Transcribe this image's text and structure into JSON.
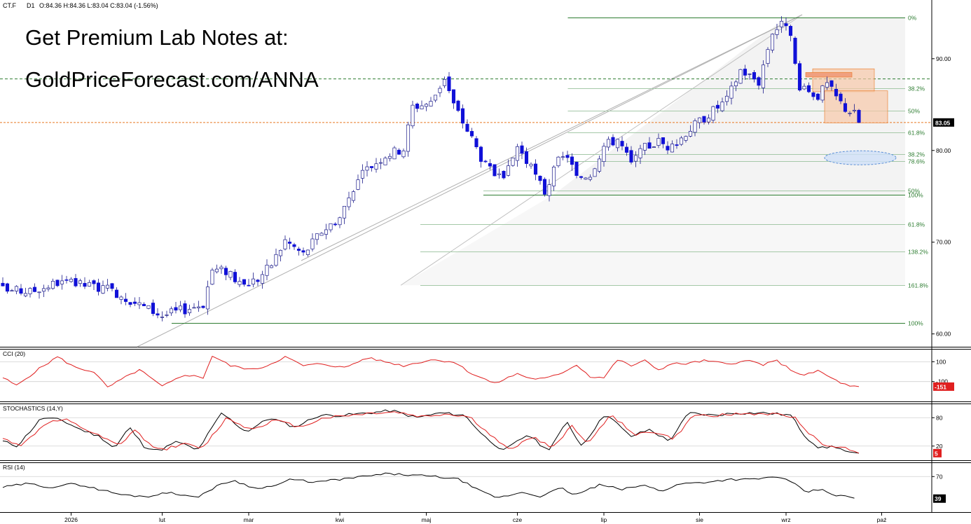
{
  "header": {
    "symbol": "CT.F",
    "timeframe": "D1",
    "ohlc": "O:84.36 H:84.36 L:83.04 C:83.04 (-1.56%)"
  },
  "promo": {
    "line1": "Get Premium Lab Notes at:",
    "line2": "GoldPriceForecast.com/ANNA"
  },
  "chart_data": [
    {
      "type": "candlestick",
      "panel": "price",
      "ylim": [
        60,
        95
      ],
      "y_ticks": [
        "90.00",
        "80.00",
        "70.00",
        "60.00"
      ],
      "y_tick_values": [
        90,
        80,
        70,
        60
      ],
      "last_price": 83.05,
      "last_price_label": "83.05",
      "colors": {
        "bull": "#1a1aa6",
        "bear": "#1010d8",
        "last": "#000000",
        "fib": "#2e7d32",
        "orange": "#e87722"
      },
      "x_ticks": [
        "2026",
        "lut",
        "mar",
        "kwi",
        "maj",
        "cze",
        "lip",
        "sie",
        "wrz",
        "paź"
      ],
      "x_tick_index": [
        15,
        35,
        54,
        74,
        93,
        113,
        132,
        153,
        172,
        193
      ],
      "anchors": [
        [
          0,
          64.8
        ],
        [
          6,
          64.6
        ],
        [
          12,
          65.6
        ],
        [
          20,
          65.2
        ],
        [
          25,
          64.5
        ],
        [
          30,
          63.2
        ],
        [
          35,
          62.0
        ],
        [
          40,
          62.7
        ],
        [
          44,
          63.3
        ],
        [
          46,
          67.0
        ],
        [
          50,
          66.8
        ],
        [
          52,
          65.2
        ],
        [
          56,
          66.0
        ],
        [
          59,
          67.6
        ],
        [
          62,
          70.2
        ],
        [
          66,
          68.7
        ],
        [
          70,
          71.2
        ],
        [
          74,
          72.7
        ],
        [
          77,
          76.0
        ],
        [
          80,
          78.0
        ],
        [
          84,
          79.5
        ],
        [
          88,
          80.2
        ],
        [
          90,
          84.8
        ],
        [
          94,
          85.2
        ],
        [
          97,
          88.0
        ],
        [
          99,
          85.0
        ],
        [
          103,
          81.3
        ],
        [
          106,
          78.3
        ],
        [
          110,
          76.5
        ],
        [
          113,
          80.5
        ],
        [
          116,
          78.0
        ],
        [
          119,
          75.5
        ],
        [
          122,
          78.8
        ],
        [
          124,
          79.5
        ],
        [
          126,
          77.0
        ],
        [
          129,
          77.5
        ],
        [
          132,
          80.5
        ],
        [
          135,
          81.3
        ],
        [
          138,
          78.5
        ],
        [
          141,
          80.3
        ],
        [
          144,
          81.0
        ],
        [
          147,
          80.2
        ],
        [
          150,
          82.0
        ],
        [
          155,
          84.0
        ],
        [
          159,
          85.5
        ],
        [
          162,
          88.8
        ],
        [
          166,
          87.5
        ],
        [
          169,
          93.0
        ],
        [
          172,
          94.0
        ],
        [
          173,
          92.0
        ],
        [
          175,
          86.5
        ],
        [
          177,
          86.4
        ],
        [
          179,
          86.0
        ],
        [
          181,
          87.2
        ],
        [
          183,
          85.8
        ],
        [
          185,
          84.6
        ],
        [
          187,
          84.0
        ],
        [
          188,
          83.05
        ]
      ],
      "fib_levels": [
        {
          "label": "0%",
          "value": 94.5
        },
        {
          "label": "38.2%",
          "value": 86.8
        },
        {
          "label": "50%",
          "value": 84.3
        },
        {
          "label": "61.8%",
          "value": 82.0
        },
        {
          "label": "38.2%",
          "value": 79.6
        },
        {
          "label": "78.6%",
          "value": 78.8
        },
        {
          "label": "50%",
          "value": 75.6
        },
        {
          "label": "100%",
          "value": 75.2
        },
        {
          "label": "61.8%",
          "value": 72.0
        },
        {
          "label": "138.2%",
          "value": 69.0
        },
        {
          "label": "161.8%",
          "value": 65.3
        },
        {
          "label": "100%",
          "value": 61.2
        }
      ],
      "dashed_level": 87.8
    },
    {
      "type": "line",
      "panel": "cci",
      "title": "CCI (20)",
      "ylim": [
        -300,
        230
      ],
      "y_ticks": [
        "100",
        "-100"
      ],
      "y_tick_values": [
        100,
        -100
      ],
      "last_label": "-151",
      "color": "#e02020",
      "anchors": [
        [
          0,
          -60
        ],
        [
          3,
          -140
        ],
        [
          8,
          30
        ],
        [
          12,
          150
        ],
        [
          16,
          40
        ],
        [
          20,
          0
        ],
        [
          23,
          -160
        ],
        [
          26,
          -80
        ],
        [
          30,
          20
        ],
        [
          35,
          -150
        ],
        [
          40,
          -30
        ],
        [
          44,
          -60
        ],
        [
          46,
          160
        ],
        [
          50,
          60
        ],
        [
          55,
          20
        ],
        [
          58,
          60
        ],
        [
          62,
          150
        ],
        [
          66,
          60
        ],
        [
          70,
          80
        ],
        [
          75,
          40
        ],
        [
          80,
          140
        ],
        [
          84,
          100
        ],
        [
          88,
          60
        ],
        [
          94,
          120
        ],
        [
          99,
          100
        ],
        [
          103,
          -20
        ],
        [
          108,
          -120
        ],
        [
          113,
          -20
        ],
        [
          116,
          -70
        ],
        [
          119,
          -70
        ],
        [
          122,
          -30
        ],
        [
          126,
          70
        ],
        [
          129,
          -50
        ],
        [
          132,
          -60
        ],
        [
          135,
          120
        ],
        [
          138,
          60
        ],
        [
          141,
          110
        ],
        [
          144,
          20
        ],
        [
          147,
          80
        ],
        [
          150,
          80
        ],
        [
          154,
          110
        ],
        [
          159,
          80
        ],
        [
          164,
          110
        ],
        [
          167,
          70
        ],
        [
          170,
          110
        ],
        [
          173,
          20
        ],
        [
          176,
          -40
        ],
        [
          179,
          10
        ],
        [
          183,
          -90
        ],
        [
          186,
          -150
        ],
        [
          188,
          -151
        ]
      ]
    },
    {
      "type": "line",
      "panel": "stochastics",
      "title": "STOCHASTICS (14,Y)",
      "ylim": [
        -10,
        110
      ],
      "y_ticks": [
        "80",
        "20"
      ],
      "y_tick_values": [
        80,
        20
      ],
      "last_label": "5",
      "series_colors": {
        "k": "#000000",
        "d": "#e02020"
      },
      "series": [
        {
          "key": "k",
          "anchors": [
            [
              0,
              30
            ],
            [
              3,
              20
            ],
            [
              8,
              80
            ],
            [
              12,
              75
            ],
            [
              16,
              55
            ],
            [
              20,
              40
            ],
            [
              23,
              15
            ],
            [
              26,
              60
            ],
            [
              29,
              20
            ],
            [
              32,
              10
            ],
            [
              36,
              30
            ],
            [
              40,
              10
            ],
            [
              45,
              90
            ],
            [
              50,
              50
            ],
            [
              55,
              80
            ],
            [
              60,
              60
            ],
            [
              65,
              85
            ],
            [
              70,
              85
            ],
            [
              75,
              90
            ],
            [
              80,
              95
            ],
            [
              85,
              80
            ],
            [
              90,
              90
            ],
            [
              95,
              85
            ],
            [
              99,
              40
            ],
            [
              103,
              10
            ],
            [
              108,
              45
            ],
            [
              112,
              10
            ],
            [
              116,
              70
            ],
            [
              119,
              20
            ],
            [
              124,
              90
            ],
            [
              129,
              40
            ],
            [
              133,
              55
            ],
            [
              137,
              30
            ],
            [
              141,
              90
            ],
            [
              146,
              85
            ],
            [
              151,
              90
            ],
            [
              157,
              90
            ],
            [
              162,
              85
            ],
            [
              165,
              40
            ],
            [
              168,
              15
            ],
            [
              171,
              20
            ],
            [
              174,
              5
            ],
            [
              176,
              5
            ]
          ]
        },
        {
          "key": "d",
          "anchors": [
            [
              0,
              35
            ],
            [
              4,
              22
            ],
            [
              9,
              70
            ],
            [
              13,
              75
            ],
            [
              17,
              55
            ],
            [
              21,
              35
            ],
            [
              24,
              20
            ],
            [
              27,
              55
            ],
            [
              30,
              25
            ],
            [
              33,
              12
            ],
            [
              37,
              25
            ],
            [
              41,
              15
            ],
            [
              46,
              80
            ],
            [
              51,
              55
            ],
            [
              56,
              75
            ],
            [
              61,
              60
            ],
            [
              66,
              80
            ],
            [
              71,
              85
            ],
            [
              76,
              90
            ],
            [
              81,
              92
            ],
            [
              86,
              82
            ],
            [
              91,
              88
            ],
            [
              96,
              82
            ],
            [
              100,
              45
            ],
            [
              104,
              12
            ],
            [
              109,
              40
            ],
            [
              113,
              15
            ],
            [
              117,
              65
            ],
            [
              120,
              25
            ],
            [
              125,
              85
            ],
            [
              130,
              45
            ],
            [
              134,
              50
            ],
            [
              138,
              35
            ],
            [
              142,
              85
            ],
            [
              147,
              85
            ],
            [
              152,
              88
            ],
            [
              158,
              88
            ],
            [
              163,
              80
            ],
            [
              166,
              45
            ],
            [
              169,
              20
            ],
            [
              172,
              20
            ],
            [
              175,
              8
            ],
            [
              176,
              5
            ]
          ]
        }
      ]
    },
    {
      "type": "line",
      "panel": "rsi",
      "title": "RSI (14)",
      "ylim": [
        20,
        90
      ],
      "y_ticks": [
        "70"
      ],
      "y_tick_values": [
        70
      ],
      "last_label": "39",
      "color": "#000000",
      "anchors": [
        [
          0,
          55
        ],
        [
          5,
          60
        ],
        [
          10,
          55
        ],
        [
          15,
          60
        ],
        [
          20,
          52
        ],
        [
          25,
          44
        ],
        [
          30,
          42
        ],
        [
          35,
          48
        ],
        [
          40,
          40
        ],
        [
          45,
          58
        ],
        [
          48,
          65
        ],
        [
          52,
          54
        ],
        [
          56,
          56
        ],
        [
          60,
          66
        ],
        [
          65,
          62
        ],
        [
          70,
          66
        ],
        [
          75,
          70
        ],
        [
          80,
          74
        ],
        [
          85,
          72
        ],
        [
          90,
          70
        ],
        [
          95,
          66
        ],
        [
          99,
          50
        ],
        [
          103,
          40
        ],
        [
          108,
          48
        ],
        [
          112,
          42
        ],
        [
          116,
          54
        ],
        [
          119,
          44
        ],
        [
          124,
          58
        ],
        [
          129,
          52
        ],
        [
          133,
          58
        ],
        [
          137,
          50
        ],
        [
          141,
          60
        ],
        [
          146,
          62
        ],
        [
          151,
          66
        ],
        [
          156,
          66
        ],
        [
          161,
          70
        ],
        [
          164,
          62
        ],
        [
          167,
          48
        ],
        [
          170,
          52
        ],
        [
          173,
          44
        ],
        [
          176,
          41
        ],
        [
          178,
          39
        ]
      ]
    }
  ]
}
